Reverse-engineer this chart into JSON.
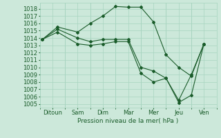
{
  "xlabel": "Pression niveau de la mer( hPa )",
  "background_color": "#cce8da",
  "grid_color": "#a8d4c0",
  "line_color": "#1a5c2a",
  "xtick_labels": [
    "Ditoun",
    "Sam",
    "Dim",
    "Mar",
    "Mer",
    "Jeu",
    "Ven"
  ],
  "xtick_positions": [
    0.5,
    1.5,
    2.5,
    3.5,
    4.5,
    5.5,
    6.5
  ],
  "xlim": [
    0,
    7
  ],
  "ylim": [
    1004.5,
    1018.8
  ],
  "yticks": [
    1005,
    1006,
    1007,
    1008,
    1009,
    1010,
    1011,
    1012,
    1013,
    1014,
    1015,
    1016,
    1017,
    1018
  ],
  "line1_x": [
    0.1,
    0.7,
    1.5,
    2.0,
    2.5,
    3.0,
    3.5,
    4.0,
    4.5,
    5.0,
    5.5,
    6.0,
    6.5
  ],
  "line1_y": [
    1013.8,
    1015.5,
    1014.8,
    1016.0,
    1017.0,
    1018.3,
    1018.2,
    1018.2,
    1016.2,
    1011.7,
    1010.0,
    1008.8,
    1013.2
  ],
  "line2_x": [
    0.1,
    0.7,
    1.5,
    2.0,
    2.5,
    3.0,
    3.5,
    4.0,
    4.5,
    5.0,
    5.5,
    6.0,
    6.5
  ],
  "line2_y": [
    1013.8,
    1014.8,
    1013.2,
    1013.0,
    1013.2,
    1013.5,
    1013.5,
    1009.2,
    1008.0,
    1008.5,
    1005.2,
    1006.2,
    1013.2
  ],
  "line3_x": [
    0.1,
    0.7,
    1.5,
    2.0,
    2.5,
    3.0,
    3.5,
    4.0,
    4.5,
    5.0,
    5.5,
    6.0,
    6.5
  ],
  "line3_y": [
    1013.8,
    1015.2,
    1014.0,
    1013.5,
    1013.8,
    1013.8,
    1013.8,
    1010.0,
    1009.5,
    1008.5,
    1005.5,
    1009.0,
    1013.2
  ],
  "font_size": 6.5,
  "tick_font_size": 6.0
}
